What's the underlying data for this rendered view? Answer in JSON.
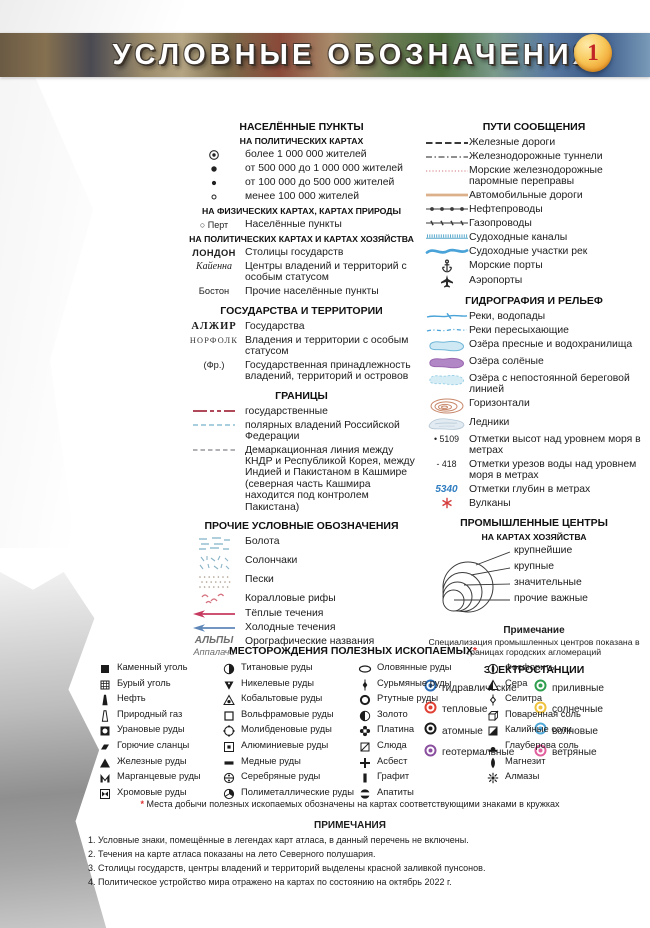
{
  "header": {
    "title": "УСЛОВНЫЕ ОБОЗНАЧЕНИЯ",
    "badge": "1"
  },
  "left_column": {
    "settlements": {
      "title": "НАСЕЛЁННЫЕ ПУНКТЫ",
      "groups": [
        {
          "subtitle": "НА ПОЛИТИЧЕСКИХ КАРТАХ",
          "items": [
            {
              "sym": "ring-dot",
              "label": "более 1 000 000 жителей"
            },
            {
              "sym": "dot-md",
              "label": "от 500 000 до 1 000 000 жителей"
            },
            {
              "sym": "dot-sm",
              "label": "от 100 000 до 500 000 жителей"
            },
            {
              "sym": "circle-sm",
              "label": "менее 100 000 жителей"
            }
          ]
        },
        {
          "subtitle": "НА ФИЗИЧЕСКИХ КАРТАХ, КАРТАХ ПРИРОДЫ",
          "items": [
            {
              "sym": "text-small",
              "symbol_text": "○ Перт",
              "label": "Населённые пункты"
            }
          ]
        },
        {
          "subtitle": "НА ПОЛИТИЧЕСКИХ КАРТАХ И КАРТАХ ХОЗЯЙСТВА",
          "items": [
            {
              "sym": "text-caps",
              "symbol_text": "ЛОНДОН",
              "label": "Столицы государств"
            },
            {
              "sym": "text-italic",
              "symbol_text": "Кайенна",
              "label": "Центры владений и территорий с особым статусом"
            },
            {
              "sym": "text-plain",
              "symbol_text": "Бостон",
              "label": "Прочие населённые пункты"
            }
          ]
        }
      ]
    },
    "states": {
      "title": "ГОСУДАРСТВА И ТЕРРИТОРИИ",
      "items": [
        {
          "sym": "text-serif-bold",
          "symbol_text": "АЛЖИР",
          "label": "Государства"
        },
        {
          "sym": "text-serif-caps",
          "symbol_text": "НОРФОЛК",
          "label": "Владения и территории с особым статусом"
        },
        {
          "sym": "text-plain",
          "symbol_text": "(Фр.)",
          "label": "Государственная принадлежность владений, территорий и островов"
        }
      ]
    },
    "borders": {
      "title": "ГРАНИЦЫ",
      "items": [
        {
          "sym": "border-state",
          "label": "государственные"
        },
        {
          "sym": "border-polar",
          "label": "полярных владений Российской Федерации"
        },
        {
          "sym": "border-demarcation",
          "label": "Демаркационная линия между КНДР и Республикой Корея, между Индией и Пакистаном в Кашмире (северная часть Кашмира находится под контролем Пакистана)"
        }
      ]
    },
    "other": {
      "title": "ПРОЧИЕ УСЛОВНЫЕ ОБОЗНАЧЕНИЯ",
      "items": [
        {
          "sym": "swamp",
          "label": "Болота"
        },
        {
          "sym": "saltmarsh",
          "label": "Солончаки"
        },
        {
          "sym": "sands",
          "label": "Пески"
        },
        {
          "sym": "coral",
          "label": "Коралловые рифы"
        },
        {
          "sym": "warm-current",
          "label": "Тёплые течения"
        },
        {
          "sym": "cold-current",
          "label": "Холодные течения"
        },
        {
          "sym": "text-oro",
          "symbol_text": "АЛЬПЫ|Аппалачи",
          "label": "Орографические названия"
        }
      ]
    }
  },
  "right_column": {
    "transport": {
      "title": "ПУТИ СООБЩЕНИЯ",
      "items": [
        {
          "sym": "railway",
          "label": "Железные дороги"
        },
        {
          "sym": "tunnel",
          "label": "Железнодорожные туннели"
        },
        {
          "sym": "ferry",
          "label": "Морские железнодорожные паромные переправы"
        },
        {
          "sym": "road",
          "label": "Автомобильные дороги"
        },
        {
          "sym": "oil-pipeline",
          "label": "Нефтепроводы"
        },
        {
          "sym": "gas-pipeline",
          "label": "Газопроводы"
        },
        {
          "sym": "canal",
          "label": "Судоходные каналы"
        },
        {
          "sym": "navigable-river",
          "label": "Судоходные участки рек"
        },
        {
          "sym": "anchor",
          "label": "Морские порты"
        },
        {
          "sym": "airport",
          "label": "Аэропорты"
        }
      ]
    },
    "hydro": {
      "title": "ГИДРОГРАФИЯ И РЕЛЬЕФ",
      "items": [
        {
          "sym": "river",
          "label": "Реки, водопады"
        },
        {
          "sym": "river-dry",
          "label": "Реки пересыхающие"
        },
        {
          "sym": "lake-fresh",
          "label": "Озёра пресные и водохранилища"
        },
        {
          "sym": "lake-salt",
          "label": "Озёра солёные"
        },
        {
          "sym": "lake-intermittent",
          "label": "Озёра с непостоянной береговой линией"
        },
        {
          "sym": "contours",
          "label": "Горизонтали"
        },
        {
          "sym": "glacier",
          "label": "Ледники"
        },
        {
          "sym": "text-elev",
          "symbol_text": "• 5109",
          "label": "Отметки высот над уровнем моря в метрах"
        },
        {
          "sym": "text-elev",
          "symbol_text": "- 418",
          "label": "Отметки урезов воды над уровнем моря в метрах"
        },
        {
          "sym": "text-depth",
          "symbol_text": "5340",
          "label": "Отметки глубин в метрах"
        },
        {
          "sym": "volcano",
          "label": "Вулканы"
        }
      ]
    },
    "industrial": {
      "title": "ПРОМЫШЛЕННЫЕ ЦЕНТРЫ",
      "subtitle": "НА КАРТАХ ХОЗЯЙСТВА",
      "labels": [
        "крупнейшие",
        "крупные",
        "значительные",
        "прочие важные"
      ],
      "note_title": "Примечание",
      "note": "Специализация промышленных центров показана в границах городских агломераций"
    },
    "power": {
      "title": "ЭЛЕКТРОСТАНЦИИ",
      "items_left": [
        {
          "label": "гидравлические",
          "color": "#2a6db5"
        },
        {
          "label": "тепловые",
          "color": "#e04034"
        },
        {
          "label": "атомные",
          "color": "#1a1a1a"
        },
        {
          "label": "геотермальные",
          "color": "#8a4f9e"
        }
      ],
      "items_right": [
        {
          "label": "приливные",
          "color": "#2f9e4f"
        },
        {
          "label": "солнечные",
          "color": "#eec23c"
        },
        {
          "label": "волновые",
          "color": "#4fa8d8"
        },
        {
          "label": "ветряные",
          "color": "#e0609e"
        }
      ]
    }
  },
  "minerals": {
    "title": "МЕСТОРОЖДЕНИЯ ПОЛЕЗНЫХ ИСКОПАЕМЫХ",
    "title_star": "*",
    "columns": [
      [
        {
          "sym": "coal",
          "label": "Каменный уголь"
        },
        {
          "sym": "brown-coal",
          "label": "Бурый уголь"
        },
        {
          "sym": "oil",
          "label": "Нефть"
        },
        {
          "sym": "gas",
          "label": "Природный газ"
        },
        {
          "sym": "uranium",
          "label": "Урановые  руды"
        },
        {
          "sym": "shale",
          "label": "Горючие сланцы"
        },
        {
          "sym": "iron",
          "label": "Железные руды"
        },
        {
          "sym": "manganese",
          "label": "Марганцевые руды"
        },
        {
          "sym": "chrome",
          "label": "Хромовые руды"
        }
      ],
      [
        {
          "sym": "titanium",
          "label": "Титановые руды"
        },
        {
          "sym": "nickel",
          "label": "Никелевые руды"
        },
        {
          "sym": "cobalt",
          "label": "Кобальтовые  руды"
        },
        {
          "sym": "tungsten",
          "label": "Вольфрамовые  руды"
        },
        {
          "sym": "molybdenum",
          "label": "Молибденовые руды"
        },
        {
          "sym": "aluminium",
          "label": "Алюминиевые руды"
        },
        {
          "sym": "copper",
          "label": "Медные руды"
        },
        {
          "sym": "silver",
          "label": "Серебряные руды"
        },
        {
          "sym": "polymetal",
          "label": "Полиметаллические руды"
        }
      ],
      [
        {
          "sym": "tin",
          "label": "Оловянные руды"
        },
        {
          "sym": "antimony",
          "label": "Сурьмяные руды"
        },
        {
          "sym": "mercury",
          "label": "Ртутные руды"
        },
        {
          "sym": "gold",
          "label": "Золото"
        },
        {
          "sym": "platinum",
          "label": "Платина"
        },
        {
          "sym": "mica",
          "label": "Слюда"
        },
        {
          "sym": "asbestos",
          "label": "Асбест"
        },
        {
          "sym": "graphite",
          "label": "Графит"
        },
        {
          "sym": "apatite",
          "label": "Апатиты"
        }
      ],
      [
        {
          "sym": "phosphorite",
          "label": "Фосфориты"
        },
        {
          "sym": "sulfur",
          "label": "Сера"
        },
        {
          "sym": "saltpeter",
          "label": "Селитра"
        },
        {
          "sym": "table-salt",
          "label": "Поваренная  соль"
        },
        {
          "sym": "potash",
          "label": "Калийные соли"
        },
        {
          "sym": "glauber-salt",
          "label": "Глауберова соль"
        },
        {
          "sym": "magnesite",
          "label": "Магнезит"
        },
        {
          "sym": "diamond",
          "label": "Алмазы"
        }
      ]
    ],
    "footnote_star": "*",
    "footnote": "Места добычи полезных ископаемых обозначены на картах соответствующими знаками в кружках"
  },
  "notes": {
    "title": "ПРИМЕЧАНИЯ",
    "items": [
      "1. Условные знаки, помещённые в легендах карт атласа, в данный перечень не включены.",
      "2. Течения на карте атласа показаны на лето Северного полушария.",
      "3. Столицы государств, центры владений и территорий выделены красной заливкой пунсонов.",
      "4. Политическое устройство мира отражено на картах по состоянию на октябрь 2022 г."
    ]
  }
}
